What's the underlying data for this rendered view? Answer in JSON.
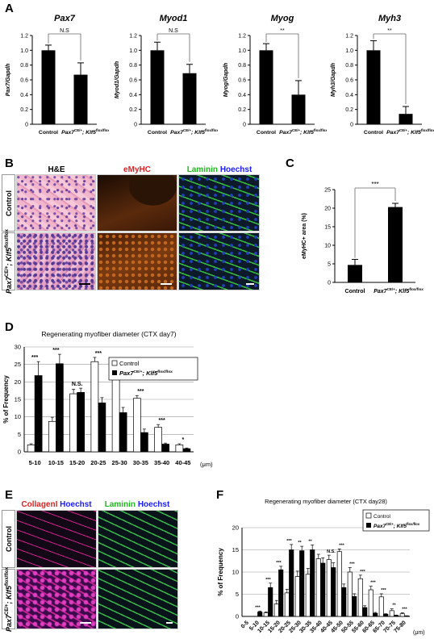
{
  "panels": {
    "A": "A",
    "B": "B",
    "C": "C",
    "D": "D",
    "E": "E",
    "F": "F"
  },
  "micro": {
    "he": "H&E",
    "emyhc": "eMyHC",
    "laminin": "Laminin",
    "hoechst": "Hoechst",
    "collagen": "CollagenI",
    "control": "Control",
    "mutant_main": "Pax7",
    "mutant_sup": "CE/+",
    "mutant_mid": "; Klf5",
    "mutant_sup2": "flox/flox"
  },
  "chart_data": [
    {
      "type": "bar",
      "id": "pax7",
      "title": "Pax7",
      "ylabel": "Pax7/Gapdh",
      "ylim": [
        0,
        1.2
      ],
      "yticks": [
        "0",
        "0.2",
        "0.4",
        "0.6",
        "0.8",
        "1.0",
        "1.2"
      ],
      "categories": [
        "Control",
        "Pax7CE/+; Klf5flox/flox"
      ],
      "values": [
        1.0,
        0.67
      ],
      "errors": [
        0.07,
        0.16
      ],
      "sig": "N.S"
    },
    {
      "type": "bar",
      "id": "myod1",
      "title": "Myod1",
      "ylabel": "Myod1/Gapdh",
      "ylim": [
        0,
        1.2
      ],
      "yticks": [
        "0",
        "0.2",
        "0.4",
        "0.6",
        "0.8",
        "1.0",
        "1.2"
      ],
      "categories": [
        "Control",
        "Pax7CE/+; Klf5flox/flox"
      ],
      "values": [
        1.0,
        0.69
      ],
      "errors": [
        0.11,
        0.12
      ],
      "sig": "N.S"
    },
    {
      "type": "bar",
      "id": "myog",
      "title": "Myog",
      "ylabel": "Myog/Gapdh",
      "ylim": [
        0,
        1.2
      ],
      "yticks": [
        "0",
        "0.2",
        "0.4",
        "0.6",
        "0.8",
        "1.0",
        "1.2"
      ],
      "categories": [
        "Control",
        "Pax7CE/+; Klf5flox/flox"
      ],
      "values": [
        1.0,
        0.4
      ],
      "errors": [
        0.09,
        0.19
      ],
      "sig": "**"
    },
    {
      "type": "bar",
      "id": "myh3",
      "title": "Myh3",
      "ylabel": "Myh3/Gapdh",
      "ylim": [
        0,
        1.2
      ],
      "yticks": [
        "0",
        "0.2",
        "0.4",
        "0.6",
        "0.8",
        "1.0",
        "1.2"
      ],
      "categories": [
        "Control",
        "Pax7CE/+; Klf5flox/flox"
      ],
      "values": [
        1.0,
        0.14
      ],
      "errors": [
        0.13,
        0.1
      ],
      "sig": "**"
    },
    {
      "type": "bar",
      "id": "emyhc",
      "ylabel": "eMyHC+ area (%)",
      "ylim": [
        0,
        25
      ],
      "yticks": [
        "0",
        "5",
        "10",
        "15",
        "20",
        "25"
      ],
      "categories": [
        "Control",
        "Pax7CE/+; Klf5flox/flox"
      ],
      "values": [
        4.7,
        20.3
      ],
      "errors": [
        1.5,
        1.0
      ],
      "sig": "***"
    },
    {
      "type": "bar",
      "id": "cdx7",
      "title": "Regenerating myofiber diameter (CTX day7)",
      "ylabel": "% of Frequency",
      "xunit": "(μm)",
      "ylim": [
        0,
        30
      ],
      "yticks": [
        "0",
        "5",
        "10",
        "15",
        "20",
        "25",
        "30"
      ],
      "categories": [
        "5-10",
        "10-15",
        "15-20",
        "20-25",
        "25-30",
        "30-35",
        "35-40",
        "40-45"
      ],
      "series": [
        {
          "name": "Control",
          "values": [
            2,
            8.7,
            16.6,
            25.8,
            21.5,
            15.3,
            7,
            2
          ]
        },
        {
          "name": "Pax7CE/+; Klf5flox/flox",
          "values": [
            21.8,
            25.2,
            17,
            14,
            11.2,
            5.5,
            2.2,
            0.9
          ]
        }
      ],
      "errors": [
        [
          0.3,
          1.2,
          1.3,
          1.2,
          1.3,
          0.8,
          0.8,
          0.3
        ],
        [
          4,
          2.7,
          1.2,
          1.5,
          1.5,
          1,
          0.3,
          0.2
        ]
      ],
      "sig": [
        "***",
        "***",
        "N.S.",
        "***",
        "***",
        "***",
        "***",
        "*"
      ]
    },
    {
      "type": "bar",
      "id": "cdx28",
      "title": "Regenerating myofiber diameter (CTX day28)",
      "ylabel": "% of Frequency",
      "xunit": "(μm)",
      "ylim": [
        0,
        20
      ],
      "yticks": [
        "0",
        "5",
        "10",
        "15",
        "20"
      ],
      "categories": [
        "0-5",
        "5-10",
        "10-15",
        "15-20",
        "20-25",
        "25-30",
        "30-35",
        "35-40",
        "40-45",
        "45-50",
        "50-55",
        "55-60",
        "60-65",
        "65-70",
        "70-75",
        "75-80"
      ],
      "series": [
        {
          "name": "Control",
          "values": [
            0,
            0,
            0.8,
            2.8,
            5.3,
            9,
            9.5,
            13,
            12.8,
            14.6,
            10,
            8.5,
            6,
            4.4,
            1.3,
            0.6
          ]
        },
        {
          "name": "Pax7CE/+; Klf5flox/flox",
          "values": [
            0,
            1,
            6.5,
            10.5,
            15,
            14.8,
            15,
            12,
            11,
            6.5,
            4.5,
            2,
            0.7,
            0.5,
            0.2,
            0.1
          ]
        }
      ],
      "errors": [
        [
          0,
          0,
          0.2,
          0.8,
          0.8,
          1.2,
          1.3,
          1,
          1,
          0.6,
          1,
          0.8,
          0.8,
          0.7,
          0.4,
          0.2
        ],
        [
          0,
          0.2,
          1,
          0.8,
          1.2,
          1,
          1.1,
          1.2,
          1.1,
          0.8,
          0.6,
          0.4,
          0.2,
          0.1,
          0.1,
          0.05
        ]
      ],
      "sig": [
        "",
        "***",
        "***",
        "***",
        "***",
        "**",
        "**",
        "",
        "N.S.",
        "***",
        "***",
        "***",
        "***",
        "***",
        "**",
        "***"
      ]
    }
  ]
}
